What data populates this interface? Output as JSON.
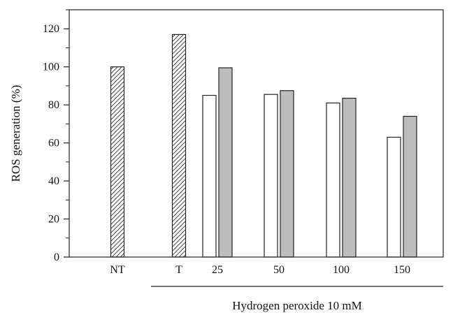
{
  "chart_data": {
    "type": "bar",
    "title": "",
    "xlabel": "",
    "ylabel": "ROS generation (%)",
    "ylim": [
      0,
      130
    ],
    "yticks": [
      0,
      20,
      40,
      60,
      80,
      100,
      120
    ],
    "group_label": "Hydrogen peroxide 10 mM",
    "categories": [
      "NT",
      "T",
      "25",
      "50",
      "100",
      "150"
    ],
    "series": [
      {
        "fill": "hatched",
        "values": [
          100,
          117,
          null,
          null,
          null,
          null
        ]
      },
      {
        "fill": "#ffffff",
        "values": [
          null,
          null,
          85,
          85.5,
          81,
          63
        ]
      },
      {
        "fill": "#bdbdbd",
        "values": [
          null,
          null,
          99.5,
          87.5,
          83.5,
          74
        ]
      }
    ],
    "grid": false,
    "legend": "none"
  }
}
